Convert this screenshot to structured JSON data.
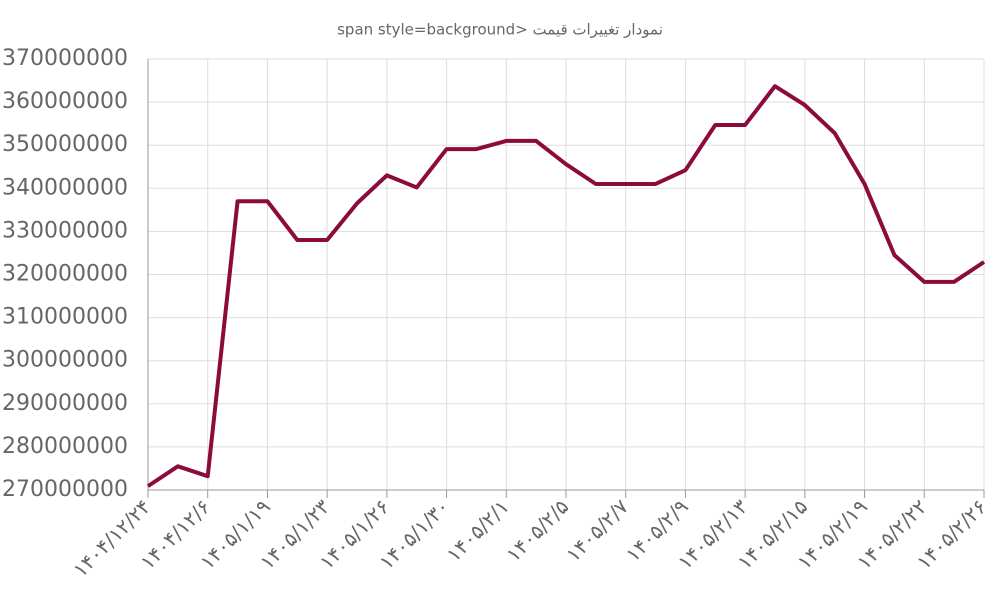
{
  "chart_data": {
    "type": "line",
    "title": "span style=background> نمودار تغییرات قیمت",
    "categories": [
      "۱۴۰۴/۱۲/۲۴",
      null,
      "۱۴۰۴/۱۲/۶",
      null,
      "۱۴۰۵/۱/۱۹",
      null,
      "۱۴۰۵/۱/۲۳",
      null,
      "۱۴۰۵/۱/۲۶",
      null,
      "۱۴۰۵/۱/۳۰",
      null,
      "۱۴۰۵/۲/۱",
      null,
      "۱۴۰۵/۲/۵",
      null,
      "۱۴۰۵/۲/۷",
      null,
      "۱۴۰۵/۲/۹",
      null,
      "۱۴۰۵/۲/۱۳",
      null,
      "۱۴۰۵/۲/۱۵",
      null,
      "۱۴۰۵/۲/۱۹",
      null,
      "۱۴۰۵/۲/۲۲",
      null,
      "۱۴۰۵/۲/۲۶"
    ],
    "series": [
      {
        "color": "#8c0a3c",
        "values": [
          270900000,
          275500000,
          273200000,
          337000000,
          337000000,
          328000000,
          328000000,
          336500000,
          343000000,
          340200000,
          349100000,
          349100000,
          351000000,
          351000000,
          345600000,
          341000000,
          341000000,
          341000000,
          344200000,
          354700000,
          354700000,
          363700000,
          359300000,
          352800000,
          341000000,
          324500000,
          318300000,
          318300000,
          322900000
        ]
      }
    ],
    "ylim": [
      270000000,
      370000000
    ],
    "yticks": [
      270000000,
      280000000,
      290000000,
      300000000,
      310000000,
      320000000,
      330000000,
      340000000,
      350000000,
      360000000,
      370000000
    ],
    "grid": true
  }
}
